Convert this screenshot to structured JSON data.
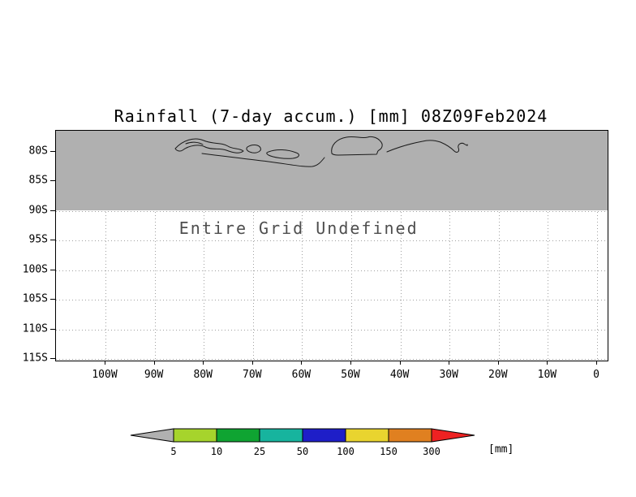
{
  "title": "Rainfall (7-day accum.) [mm] 08Z09Feb2024",
  "chart_data": {
    "type": "heatmap",
    "title": "Rainfall (7-day accum.) [mm] 08Z09Feb2024",
    "subtitle": "",
    "status_text": "Entire Grid Undefined",
    "values": [],
    "grid": true,
    "x_ticks": [
      "100W",
      "90W",
      "80W",
      "70W",
      "60W",
      "50W",
      "40W",
      "30W",
      "20W",
      "10W",
      "0"
    ],
    "y_ticks": [
      "80S",
      "85S",
      "90S",
      "95S",
      "100S",
      "105S",
      "110S",
      "115S"
    ],
    "undefined_region": {
      "description": "gray shaded band with coastline contours from plot top to 90S",
      "color": "#b0b0b0"
    },
    "colorbar": {
      "levels": [
        "5",
        "10",
        "25",
        "50",
        "100",
        "150",
        "300"
      ],
      "colors": [
        "#b0b0b0",
        "#a6d42c",
        "#0fa432",
        "#17b49e",
        "#1e1ec8",
        "#e9d42f",
        "#e08020",
        "#ee2222"
      ],
      "unit_label": "[mm]"
    }
  }
}
